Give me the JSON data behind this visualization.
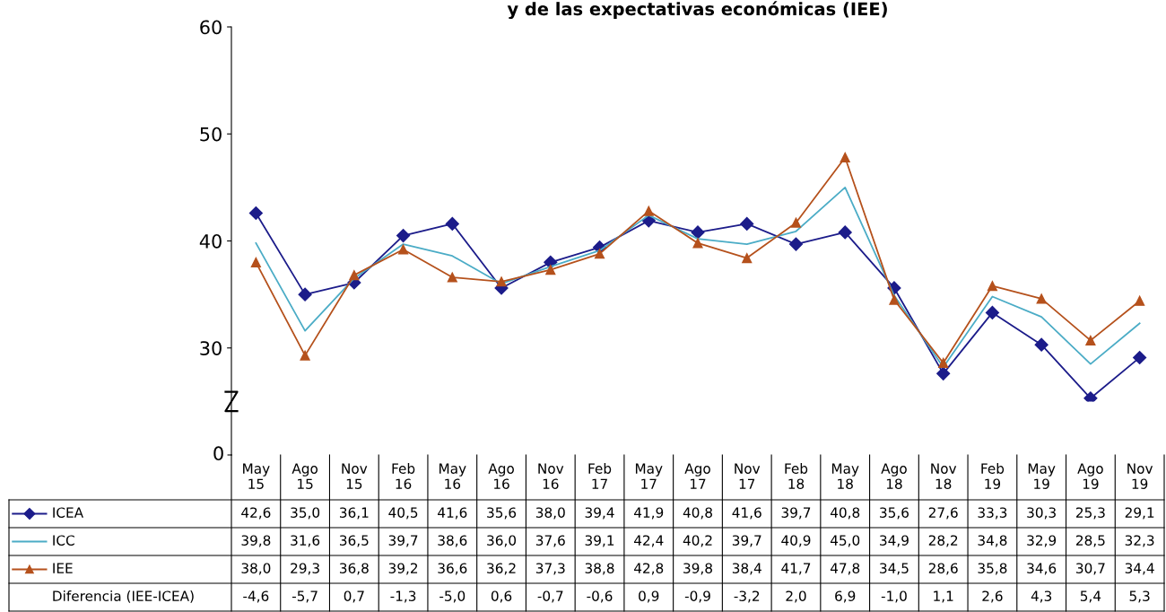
{
  "chart_data": {
    "type": "line",
    "title": "y de las expectativas económicas (IEE)",
    "categories": [
      "May\n15",
      "Ago\n15",
      "Nov\n15",
      "Feb\n16",
      "May\n16",
      "Ago\n16",
      "Nov\n16",
      "Feb\n17",
      "May\n17",
      "Ago\n17",
      "Nov\n17",
      "Feb\n18",
      "May\n18",
      "Ago\n18",
      "Nov\n18",
      "Feb\n19",
      "May\n19",
      "Ago\n19",
      "Nov\n19"
    ],
    "series": [
      {
        "name": "ICEA",
        "color": "#1c1c8a",
        "marker": "diamond",
        "values": [
          42.6,
          35.0,
          36.1,
          40.5,
          41.6,
          35.6,
          38.0,
          39.4,
          41.9,
          40.8,
          41.6,
          39.7,
          40.8,
          35.6,
          27.6,
          33.3,
          30.3,
          25.3,
          29.1
        ],
        "value_labels": [
          "42,6",
          "35,0",
          "36,1",
          "40,5",
          "41,6",
          "35,6",
          "38,0",
          "39,4",
          "41,9",
          "40,8",
          "41,6",
          "39,7",
          "40,8",
          "35,6",
          "27,6",
          "33,3",
          "30,3",
          "25,3",
          "29,1"
        ]
      },
      {
        "name": "ICC",
        "color": "#4bacc6",
        "marker": "none",
        "values": [
          39.8,
          31.6,
          36.5,
          39.7,
          38.6,
          36.0,
          37.6,
          39.1,
          42.4,
          40.2,
          39.7,
          40.9,
          45.0,
          34.9,
          28.2,
          34.8,
          32.9,
          28.5,
          32.3
        ],
        "value_labels": [
          "39,8",
          "31,6",
          "36,5",
          "39,7",
          "38,6",
          "36,0",
          "37,6",
          "39,1",
          "42,4",
          "40,2",
          "39,7",
          "40,9",
          "45,0",
          "34,9",
          "28,2",
          "34,8",
          "32,9",
          "28,5",
          "32,3"
        ]
      },
      {
        "name": "IEE",
        "color": "#b5511c",
        "marker": "triangle",
        "values": [
          38.0,
          29.3,
          36.8,
          39.2,
          36.6,
          36.2,
          37.3,
          38.8,
          42.8,
          39.8,
          38.4,
          41.7,
          47.8,
          34.5,
          28.6,
          35.8,
          34.6,
          30.7,
          34.4
        ],
        "value_labels": [
          "38,0",
          "29,3",
          "36,8",
          "39,2",
          "36,6",
          "36,2",
          "37,3",
          "38,8",
          "42,8",
          "39,8",
          "38,4",
          "41,7",
          "47,8",
          "34,5",
          "28,6",
          "35,8",
          "34,6",
          "30,7",
          "34,4"
        ]
      }
    ],
    "annotations": [
      "0",
      "Diferencia (IEE-ICEA)",
      "-4,6",
      "-5,7",
      "0,7",
      "-1,3",
      "-5,0",
      "0,6",
      "-0,7",
      "-0,6",
      "0,9",
      "-0,9",
      "-3,2",
      "2,0",
      "6,9",
      "-1,0",
      "1,1",
      "2,6",
      "4,3",
      "5,4",
      "5,3"
    ],
    "data_labels": true,
    "ylim": [
      25,
      60
    ],
    "yticks": [
      30,
      40,
      50,
      60
    ],
    "grid": false,
    "legend": "bottom left",
    "line_style": "solid"
  }
}
